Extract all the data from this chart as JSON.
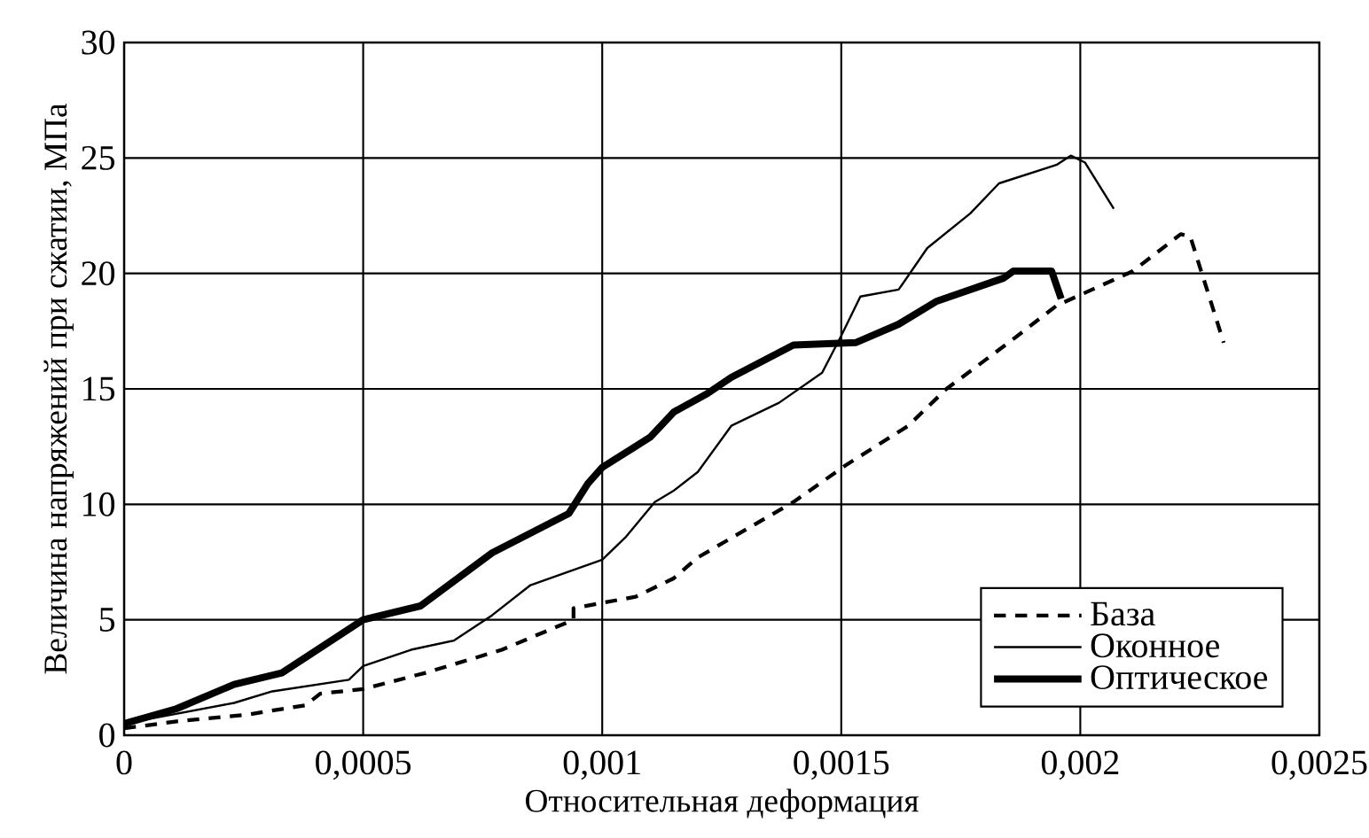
{
  "chart_data": {
    "type": "line",
    "xlabel": "Относительная деформация",
    "ylabel": "Величина напряжений при сжатии, МПа",
    "xlim": [
      0,
      0.0025
    ],
    "ylim": [
      0,
      30
    ],
    "xticks": [
      0,
      {
        "value": 0.0005,
        "label": "0,0005"
      },
      {
        "value": 0.001,
        "label": "0,001"
      },
      {
        "value": 0.0015,
        "label": "0,0015"
      },
      {
        "value": 0.002,
        "label": "0,002"
      },
      {
        "value": 0.0025,
        "label": "0,0025"
      }
    ],
    "yticks": [
      0,
      5,
      10,
      15,
      20,
      25,
      30
    ],
    "grid": true,
    "legend": "bottom right",
    "marker": "none",
    "series": [
      {
        "name": "База",
        "color": "#000000",
        "line_style": "dashed",
        "x": [
          0,
          0.00011,
          0.00026,
          0.00038,
          0.00041,
          0.0005,
          0.00063,
          0.00079,
          0.00094,
          0.00094,
          0.00107,
          0.00115,
          0.0012,
          0.0014,
          0.00151,
          0.00164,
          0.00172,
          0.00185,
          0.00195,
          0.00211,
          0.00221,
          0.00223,
          0.0023
        ],
        "values": [
          0.3,
          0.6,
          0.9,
          1.3,
          1.8,
          2.0,
          2.7,
          3.7,
          5.0,
          5.5,
          6.0,
          6.8,
          7.7,
          10.1,
          11.7,
          13.4,
          15.0,
          17.0,
          18.6,
          20.1,
          21.7,
          21.6,
          17.0
        ]
      },
      {
        "name": "Оконное",
        "color": "#000000",
        "line_style": "solid",
        "x": [
          0,
          0.00023,
          0.00031,
          0.00047,
          0.0005,
          0.0006,
          0.00069,
          0.00077,
          0.00085,
          0.001,
          0.00105,
          0.00111,
          0.00115,
          0.0012,
          0.00127,
          0.00137,
          0.00146,
          0.0015,
          0.00154,
          0.00162,
          0.00168,
          0.00177,
          0.00183,
          0.00195,
          0.00198,
          0.00201,
          0.00207
        ],
        "values": [
          0.5,
          1.4,
          1.9,
          2.4,
          3.0,
          3.7,
          4.1,
          5.2,
          6.5,
          7.6,
          8.6,
          10.1,
          10.6,
          11.4,
          13.4,
          14.4,
          15.7,
          17.3,
          19.0,
          19.3,
          21.1,
          22.6,
          23.9,
          24.7,
          25.1,
          24.8,
          22.8
        ]
      },
      {
        "name": "Оптическое",
        "color": "#000000",
        "line_style": "solid",
        "x": [
          0,
          0.00011,
          0.00023,
          0.00033,
          0.0005,
          0.00062,
          0.00077,
          0.00093,
          0.00097,
          0.001,
          0.0011,
          0.00115,
          0.00122,
          0.00127,
          0.0014,
          0.00153,
          0.00162,
          0.0017,
          0.00184,
          0.00186,
          0.00194,
          0.00196
        ],
        "values": [
          0.5,
          1.15,
          2.2,
          2.7,
          5.0,
          5.6,
          7.9,
          9.6,
          10.9,
          11.6,
          12.9,
          14.0,
          14.8,
          15.5,
          16.9,
          17.0,
          17.8,
          18.8,
          19.8,
          20.1,
          20.1,
          18.9
        ]
      }
    ]
  }
}
